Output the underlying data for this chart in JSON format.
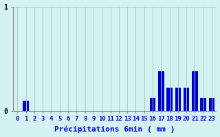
{
  "title": "",
  "xlabel": "Précipitations 6min ( mm )",
  "ylabel": "",
  "background_color": "#d5f2f2",
  "bar_color": "#0000cc",
  "grid_color": "#aacccc",
  "axis_color": "#888888",
  "text_color": "#0000cc",
  "ylim": [
    0,
    1.0
  ],
  "yticks": [
    0,
    1
  ],
  "xlim": [
    -0.5,
    23.5
  ],
  "categories": [
    0,
    1,
    2,
    3,
    4,
    5,
    6,
    7,
    8,
    9,
    10,
    11,
    12,
    13,
    14,
    15,
    16,
    17,
    18,
    19,
    20,
    21,
    22,
    23
  ],
  "values": [
    0.0,
    0.1,
    0.0,
    0.0,
    0.0,
    0.0,
    0.0,
    0.0,
    0.0,
    0.0,
    0.0,
    0.0,
    0.0,
    0.0,
    0.0,
    0.0,
    0.12,
    0.38,
    0.22,
    0.22,
    0.22,
    0.38,
    0.12,
    0.12
  ],
  "xlabel_fontsize": 8,
  "tick_fontsize": 6.5,
  "bar_width": 0.7
}
